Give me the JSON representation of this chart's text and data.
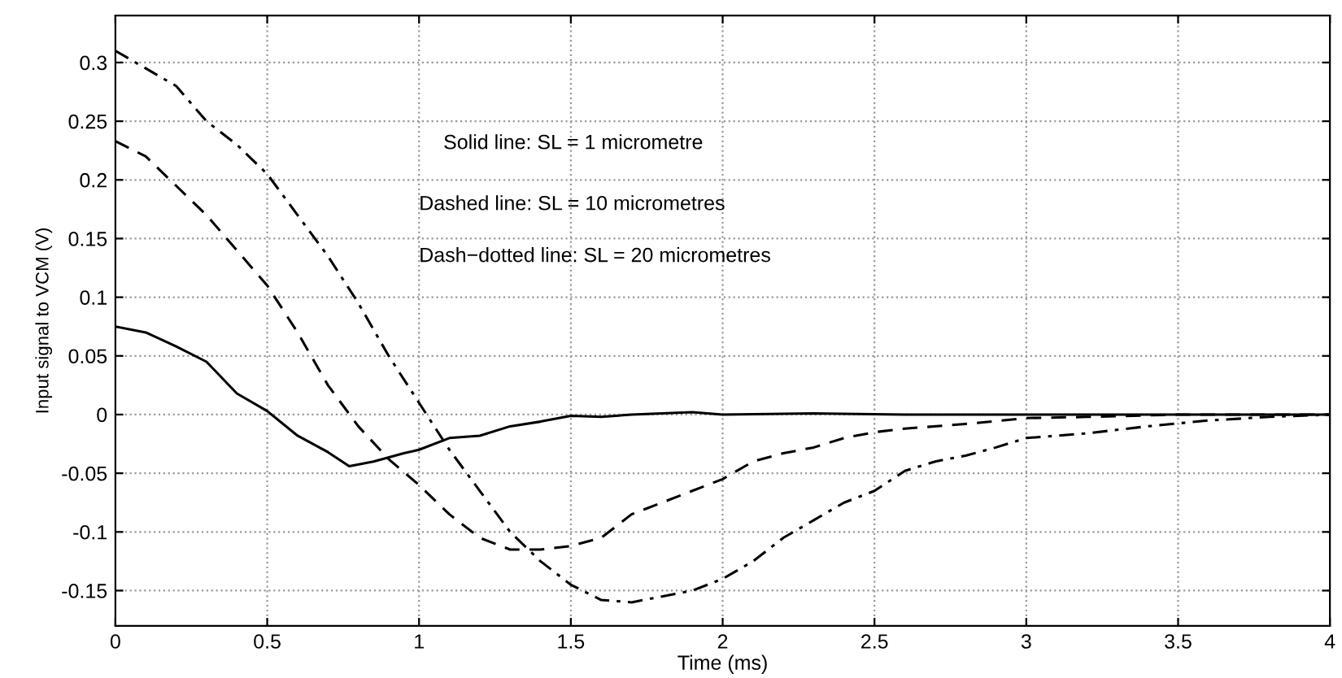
{
  "chart_data": {
    "type": "line",
    "xlabel": "Time (ms)",
    "ylabel": "Input signal to VCM (V)",
    "annotations": [
      "Solid line: SL = 1 micrometre",
      "Dashed line: SL = 10 micrometres",
      "Dash−dotted line: SL = 20 micrometres"
    ],
    "xlim": [
      0,
      4
    ],
    "ylim": [
      -0.18,
      0.34
    ],
    "xticks": [
      0,
      0.5,
      1,
      1.5,
      2,
      2.5,
      3,
      3.5,
      4
    ],
    "yticks": [
      -0.15,
      -0.1,
      -0.05,
      0,
      0.05,
      0.1,
      0.15,
      0.2,
      0.25,
      0.3
    ],
    "grid": true,
    "marker": "none",
    "series": [
      {
        "color": "#000000",
        "line_style": "solid",
        "x": [
          0,
          0.1,
          0.2,
          0.3,
          0.4,
          0.5,
          0.6,
          0.7,
          0.77,
          0.85,
          0.95,
          1.0,
          1.1,
          1.2,
          1.3,
          1.4,
          1.5,
          1.6,
          1.7,
          1.8,
          1.9,
          2.0,
          2.3,
          2.6,
          3.0,
          4.0
        ],
        "values": [
          0.075,
          0.07,
          0.058,
          0.045,
          0.018,
          0.003,
          -0.018,
          -0.032,
          -0.044,
          -0.04,
          -0.033,
          -0.03,
          -0.02,
          -0.018,
          -0.01,
          -0.006,
          -0.001,
          -0.002,
          0,
          0.001,
          0.002,
          0,
          0.001,
          0,
          0,
          0
        ]
      },
      {
        "color": "#000000",
        "line_style": "dashed",
        "x": [
          0,
          0.1,
          0.2,
          0.3,
          0.4,
          0.5,
          0.6,
          0.7,
          0.8,
          0.9,
          1.0,
          1.1,
          1.2,
          1.3,
          1.4,
          1.5,
          1.6,
          1.7,
          1.8,
          1.9,
          2.0,
          2.1,
          2.2,
          2.3,
          2.4,
          2.5,
          2.6,
          2.8,
          3.0,
          3.2,
          3.5,
          4.0
        ],
        "values": [
          0.233,
          0.22,
          0.195,
          0.17,
          0.14,
          0.11,
          0.07,
          0.025,
          -0.01,
          -0.038,
          -0.06,
          -0.085,
          -0.105,
          -0.115,
          -0.115,
          -0.112,
          -0.105,
          -0.085,
          -0.075,
          -0.065,
          -0.055,
          -0.04,
          -0.033,
          -0.028,
          -0.02,
          -0.015,
          -0.012,
          -0.008,
          -0.003,
          -0.002,
          0,
          0
        ]
      },
      {
        "color": "#000000",
        "line_style": "dashdot",
        "x": [
          0,
          0.2,
          0.3,
          0.4,
          0.5,
          0.6,
          0.7,
          0.8,
          0.9,
          1.0,
          1.1,
          1.2,
          1.3,
          1.4,
          1.5,
          1.6,
          1.7,
          1.8,
          1.9,
          2.0,
          2.1,
          2.2,
          2.3,
          2.4,
          2.5,
          2.6,
          2.7,
          2.8,
          2.9,
          3.0,
          3.2,
          3.4,
          3.6,
          3.8,
          4.0
        ],
        "values": [
          0.31,
          0.28,
          0.25,
          0.23,
          0.205,
          0.17,
          0.135,
          0.095,
          0.05,
          0.01,
          -0.03,
          -0.065,
          -0.1,
          -0.125,
          -0.145,
          -0.158,
          -0.16,
          -0.155,
          -0.15,
          -0.14,
          -0.125,
          -0.105,
          -0.09,
          -0.075,
          -0.065,
          -0.048,
          -0.04,
          -0.035,
          -0.028,
          -0.02,
          -0.016,
          -0.01,
          -0.005,
          -0.002,
          0
        ]
      }
    ]
  }
}
